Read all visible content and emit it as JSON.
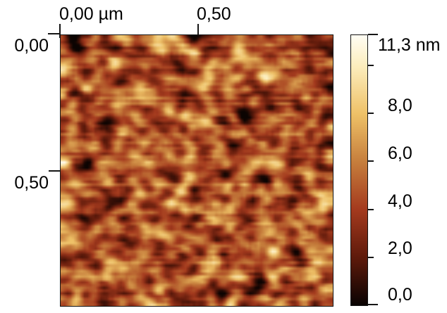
{
  "figure": {
    "kind": "AFM topography height map with color scale bar",
    "background_color": "#ffffff",
    "frame_color": "#141414",
    "text_color": "#000000"
  },
  "chart_data": {
    "type": "heatmap",
    "title": "",
    "x_axis": {
      "unit": "µm",
      "range_um": [
        0.0,
        1.01
      ],
      "ticks": [
        {
          "value_um": 0.0,
          "label": "0,00 µm"
        },
        {
          "value_um": 0.5,
          "label": "0,50"
        }
      ]
    },
    "y_axis": {
      "unit": "µm",
      "range_um": [
        0.0,
        1.01
      ],
      "ticks": [
        {
          "value_um": 0.0,
          "label": "0,00"
        },
        {
          "value_um": 0.5,
          "label": "0,50"
        }
      ]
    },
    "z_axis": {
      "unit": "nm",
      "min_nm": 0.0,
      "max_nm": 11.3,
      "colorbar_tick_values_nm": [
        11.3,
        10.0,
        8.0,
        6.0,
        4.0,
        2.0,
        0.0
      ],
      "colorbar_labels": [
        {
          "text": "11,3 nm",
          "value_nm": 11.3
        },
        {
          "text": "8,0",
          "value_nm": 8.0
        },
        {
          "text": "6,0",
          "value_nm": 6.0
        },
        {
          "text": "4,0",
          "value_nm": 4.0
        },
        {
          "text": "2,0",
          "value_nm": 2.0
        },
        {
          "text": "0,0",
          "value_nm": 0.0
        }
      ]
    },
    "colormap": [
      {
        "value_nm": 0.0,
        "color": "#090302"
      },
      {
        "value_nm": 2.0,
        "color": "#5e1a0b"
      },
      {
        "value_nm": 4.0,
        "color": "#a43a1e"
      },
      {
        "value_nm": 6.0,
        "color": "#c67e3c"
      },
      {
        "value_nm": 8.0,
        "color": "#eec167"
      },
      {
        "value_nm": 10.0,
        "color": "#fcedbd"
      },
      {
        "value_nm": 11.3,
        "color": "#fffdf4"
      }
    ],
    "texture": {
      "description": "granular film surface, bright rounded grains on darker background, horizontal scan-line streaks",
      "seed": 20240117,
      "grid": 97,
      "coarse_blur_passes": 3,
      "fine_weight": 0.35,
      "row_jitter": 0.055,
      "streak_blur_passes": 1,
      "tone_center": 0.45,
      "tone_contrast": 1.2
    }
  }
}
